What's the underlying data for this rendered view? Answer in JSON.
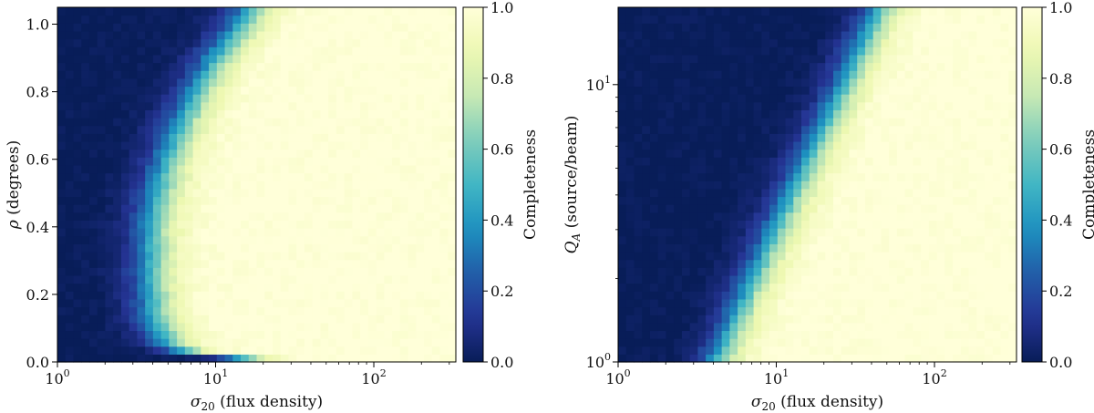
{
  "chart_data": [
    {
      "type": "heatmap",
      "panel": "left",
      "xlabel": "σ20 (flux density)",
      "xlabel_parts": {
        "symbol": "σ",
        "subscript": "20",
        "text": " (flux density)"
      },
      "ylabel": "ρ (degrees)",
      "ylabel_parts": {
        "symbol": "ρ",
        "text": " (degrees)"
      },
      "xscale": "log",
      "yscale": "linear",
      "xlim": [
        1,
        330
      ],
      "ylim": [
        0,
        1.05
      ],
      "x_ticks": [
        {
          "value": 1,
          "base": "10",
          "exp": "0"
        },
        {
          "value": 10,
          "base": "10",
          "exp": "1"
        },
        {
          "value": 100,
          "base": "10",
          "exp": "2"
        }
      ],
      "y_ticks": [
        "0.0",
        "0.2",
        "0.4",
        "0.6",
        "0.8",
        "1.0"
      ],
      "colorbar": {
        "label": "Completeness",
        "range": [
          0,
          1
        ],
        "ticks": [
          "0.0",
          "0.2",
          "0.4",
          "0.6",
          "0.8",
          "1.0"
        ]
      },
      "colormap": "YlGnBu",
      "completeness_model": {
        "description": "50% completeness boundary sigma_50(rho)",
        "rho": [
          0.0,
          0.02,
          0.04,
          0.06,
          0.1,
          0.15,
          0.2,
          0.3,
          0.4,
          0.5,
          0.6,
          0.7,
          0.8,
          0.9,
          1.0,
          1.05
        ],
        "sigma_50": [
          24,
          8,
          5.8,
          5.0,
          4.4,
          4.1,
          4.0,
          3.9,
          4.0,
          4.3,
          5.0,
          6.0,
          7.6,
          10.0,
          14.5,
          17.0
        ]
      },
      "nx": 50,
      "ny": 45
    },
    {
      "type": "heatmap",
      "panel": "right",
      "xlabel": "σ20 (flux density)",
      "xlabel_parts": {
        "symbol": "σ",
        "subscript": "20",
        "text": " (flux density)"
      },
      "ylabel": "QA (source/beam)",
      "ylabel_parts": {
        "symbol": "Q",
        "subscript": "A",
        "text": " (source/beam)"
      },
      "xscale": "log",
      "yscale": "log",
      "xlim": [
        1,
        330
      ],
      "ylim": [
        1,
        19
      ],
      "x_ticks": [
        {
          "value": 1,
          "base": "10",
          "exp": "0"
        },
        {
          "value": 10,
          "base": "10",
          "exp": "1"
        },
        {
          "value": 100,
          "base": "10",
          "exp": "2"
        }
      ],
      "y_ticks": [
        {
          "value": 1,
          "base": "10",
          "exp": "0"
        },
        {
          "value": 10,
          "base": "10",
          "exp": "1"
        }
      ],
      "colorbar": {
        "label": "Completeness",
        "range": [
          0,
          1
        ],
        "ticks": [
          "0.0",
          "0.2",
          "0.4",
          "0.6",
          "0.8",
          "1.0"
        ]
      },
      "colormap": "YlGnBu",
      "completeness_model": {
        "description": "50% completeness boundary sigma_50(Q_A), power law",
        "QA": [
          1,
          2,
          5,
          10,
          19
        ],
        "sigma_50": [
          4.2,
          7.2,
          15,
          27,
          46
        ]
      },
      "nx": 50,
      "ny": 45
    }
  ]
}
